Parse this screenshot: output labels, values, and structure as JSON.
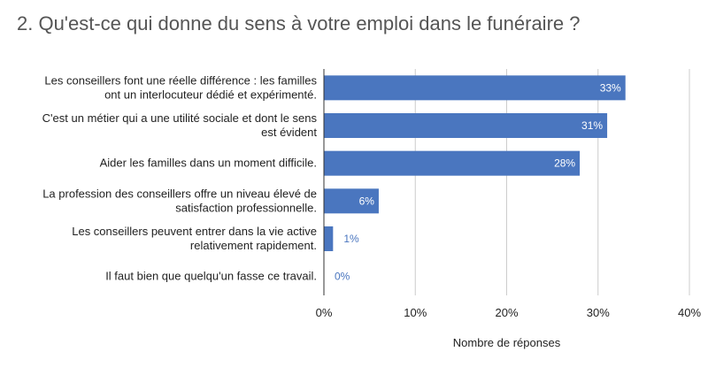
{
  "title": "2. Qu'est-ce qui donne du sens à votre emploi dans le funéraire ?",
  "chart_data": {
    "type": "bar",
    "orientation": "horizontal",
    "categories": [
      [
        "Les conseillers font une réelle différence : les familles",
        "ont un interlocuteur dédié et expérimenté."
      ],
      [
        "C'est un métier qui a une utilité sociale et dont le sens",
        "est évident"
      ],
      [
        "Aider les familles dans un moment difficile."
      ],
      [
        "La profession des conseillers offre un niveau élevé de",
        "satisfaction professionnelle."
      ],
      [
        "Les conseillers peuvent entrer dans la vie active",
        "relativement rapidement."
      ],
      [
        "Il faut bien que quelqu'un fasse ce travail."
      ]
    ],
    "values": [
      33,
      31,
      28,
      6,
      1,
      0
    ],
    "data_labels": [
      "33%",
      "31%",
      "28%",
      "6%",
      "1%",
      "0%"
    ],
    "xlim": [
      0,
      40
    ],
    "xticks": [
      0,
      10,
      20,
      30,
      40
    ],
    "xtick_labels": [
      "0%",
      "10%",
      "20%",
      "30%",
      "40%"
    ],
    "xlabel": "Nombre de réponses",
    "ylabel": "",
    "grid": "vertical",
    "bar_color": "#4a76bf",
    "label_inside_color": "#ffffff",
    "label_outside_color": "#4a76bf",
    "grid_color": "#cccccc"
  }
}
